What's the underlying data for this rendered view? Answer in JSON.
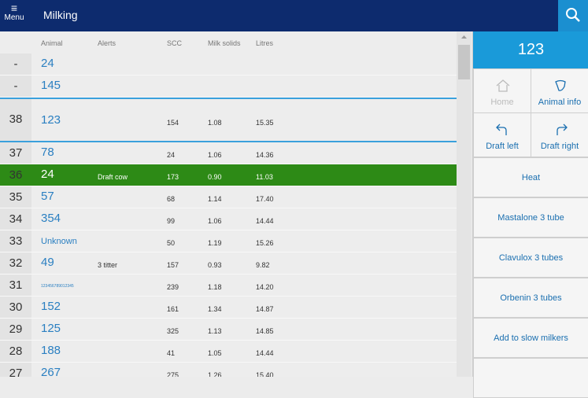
{
  "header": {
    "menu": "Menu",
    "title": "Milking"
  },
  "table": {
    "columns": [
      "Animal",
      "Alerts",
      "SCC",
      "Milk solids",
      "Litres"
    ],
    "rows": [
      {
        "stall": "-",
        "animal": "24"
      },
      {
        "stall": "-",
        "animal": "145"
      },
      {
        "stall": "38",
        "animal": "123",
        "scc": "154",
        "solids": "1.08",
        "litres": "15.35"
      },
      {
        "stall": "37",
        "animal": "78",
        "scc": "24",
        "solids": "1.06",
        "litres": "14.36"
      },
      {
        "stall": "36",
        "animal": "24",
        "alert": "Draft cow",
        "scc": "173",
        "solids": "0.90",
        "litres": "11.03"
      },
      {
        "stall": "35",
        "animal": "57",
        "scc": "68",
        "solids": "1.14",
        "litres": "17.40"
      },
      {
        "stall": "34",
        "animal": "354",
        "scc": "99",
        "solids": "1.06",
        "litres": "14.44"
      },
      {
        "stall": "33",
        "animal": "Unknown",
        "scc": "50",
        "solids": "1.19",
        "litres": "15.26"
      },
      {
        "stall": "32",
        "animal": "49",
        "alert": "3 titter",
        "scc": "157",
        "solids": "0.93",
        "litres": "9.82"
      },
      {
        "stall": "31",
        "animal": "123456789012345",
        "scc": "239",
        "solids": "1.18",
        "litres": "14.20"
      },
      {
        "stall": "30",
        "animal": "152",
        "scc": "161",
        "solids": "1.34",
        "litres": "14.87"
      },
      {
        "stall": "29",
        "animal": "125",
        "scc": "325",
        "solids": "1.13",
        "litres": "14.85"
      },
      {
        "stall": "28",
        "animal": "188",
        "scc": "41",
        "solids": "1.05",
        "litres": "14.44"
      },
      {
        "stall": "27",
        "animal": "267",
        "scc": "275",
        "solids": "1.26",
        "litres": "15.40"
      }
    ]
  },
  "panel": {
    "animal": "123",
    "grid_buttons": [
      "Home",
      "Animal info",
      "Draft left",
      "Draft right"
    ],
    "buttons": [
      "Heat",
      "Mastalone 3 tube",
      "Clavulox 3 tubes",
      "Orbenin 3 tubes",
      "Add to slow milkers"
    ]
  }
}
